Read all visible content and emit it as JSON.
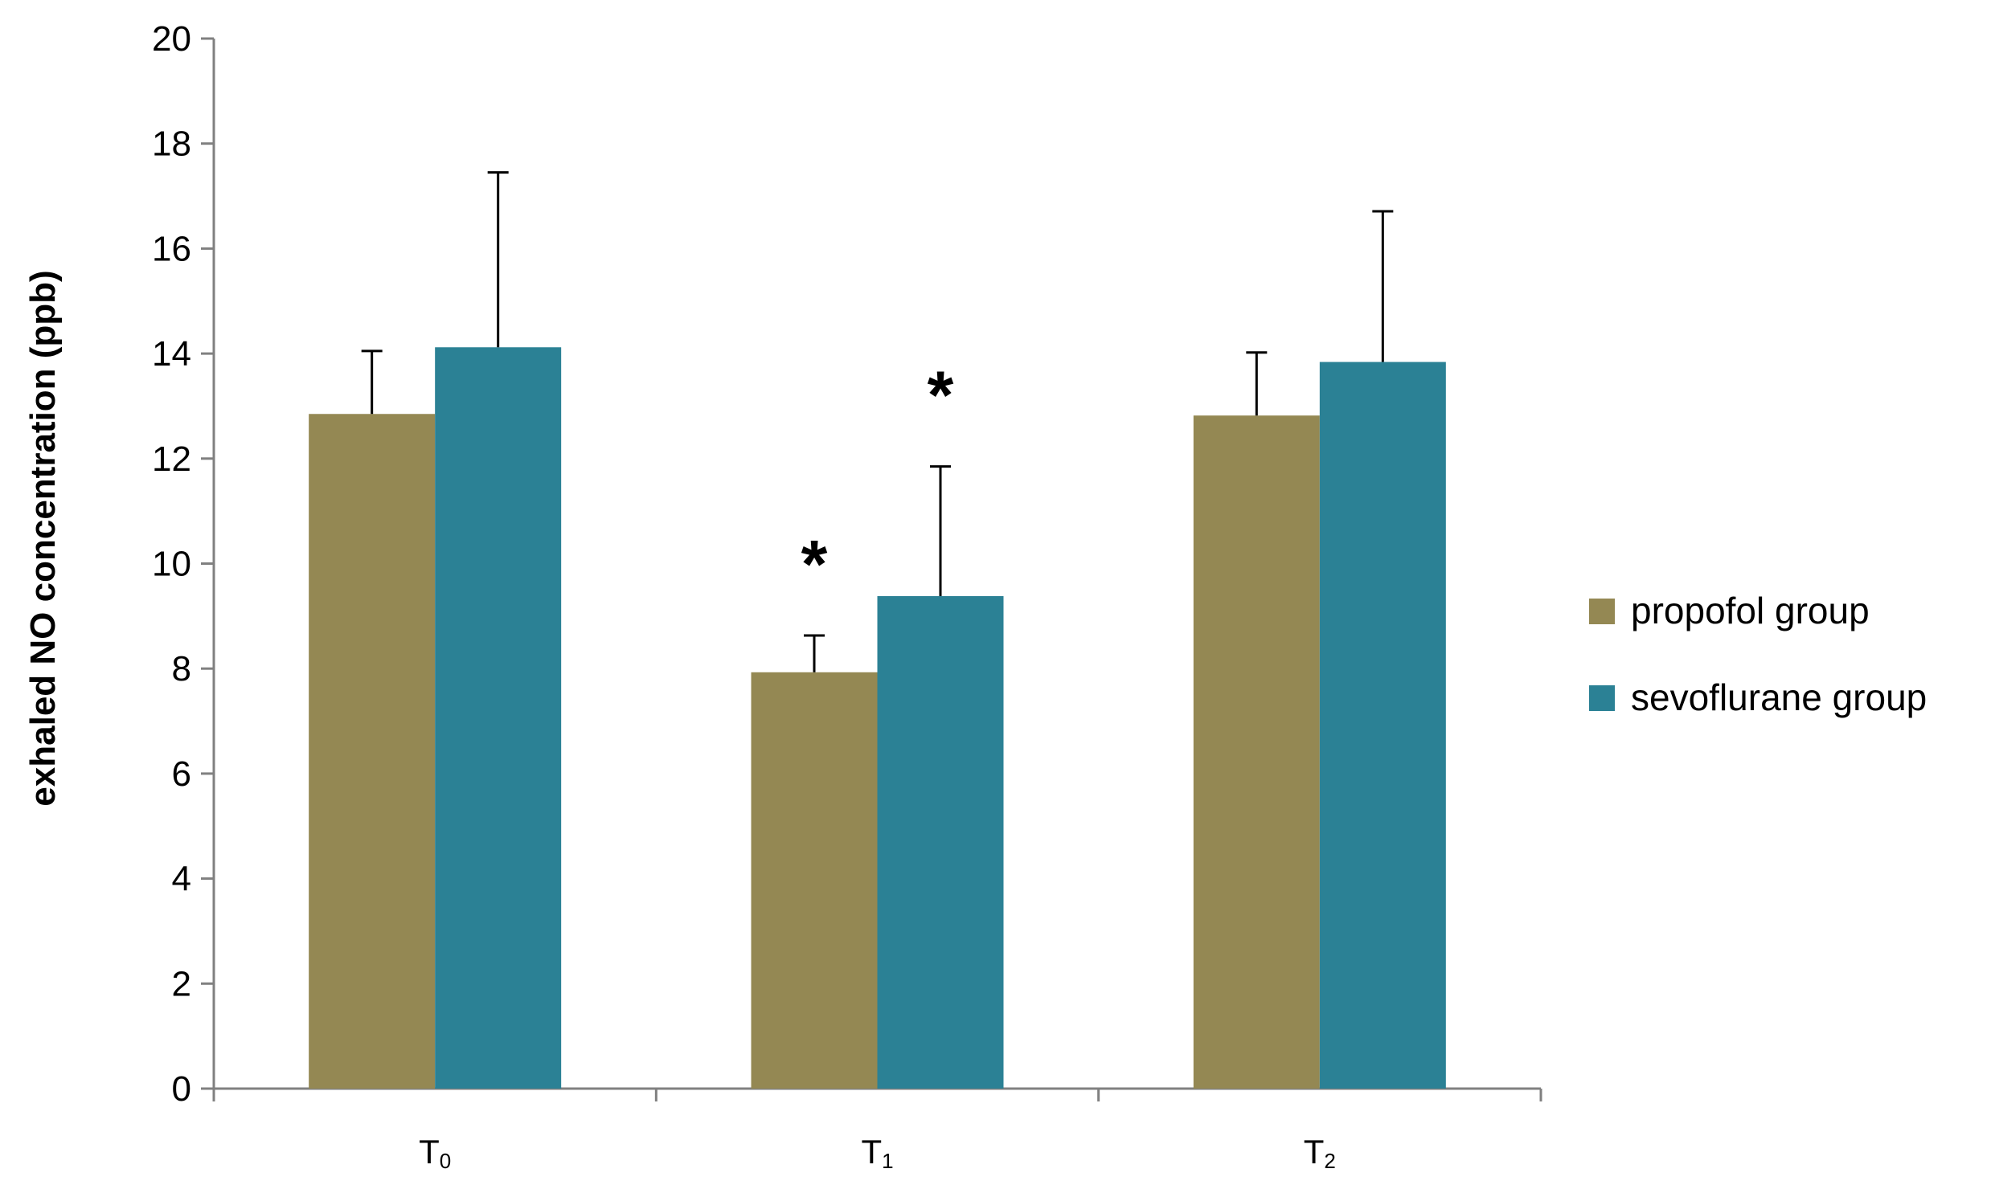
{
  "chart_data": {
    "type": "bar",
    "categories": [
      {
        "main": "T",
        "sub": "0"
      },
      {
        "main": "T",
        "sub": "1"
      },
      {
        "main": "T",
        "sub": "2"
      }
    ],
    "series": [
      {
        "name": "propofol group",
        "color": "#948853",
        "values": [
          12.85,
          7.93,
          12.82
        ],
        "error": [
          1.2,
          0.7,
          1.2
        ]
      },
      {
        "name": "sevoflurane group",
        "color": "#2b8195",
        "values": [
          14.12,
          9.38,
          13.84
        ],
        "error": [
          3.33,
          2.47,
          2.87
        ]
      }
    ],
    "ylabel": "exhaled NO concentration (ppb)",
    "xlabel": "",
    "ylim": [
      0,
      20
    ],
    "yticks": [
      0,
      2,
      4,
      6,
      8,
      10,
      12,
      14,
      16,
      18,
      20
    ],
    "grid": false,
    "legend_position": "right",
    "annotations": [
      {
        "text": "*",
        "category": 1,
        "series": 0
      },
      {
        "text": "*",
        "category": 1,
        "series": 1
      }
    ]
  }
}
